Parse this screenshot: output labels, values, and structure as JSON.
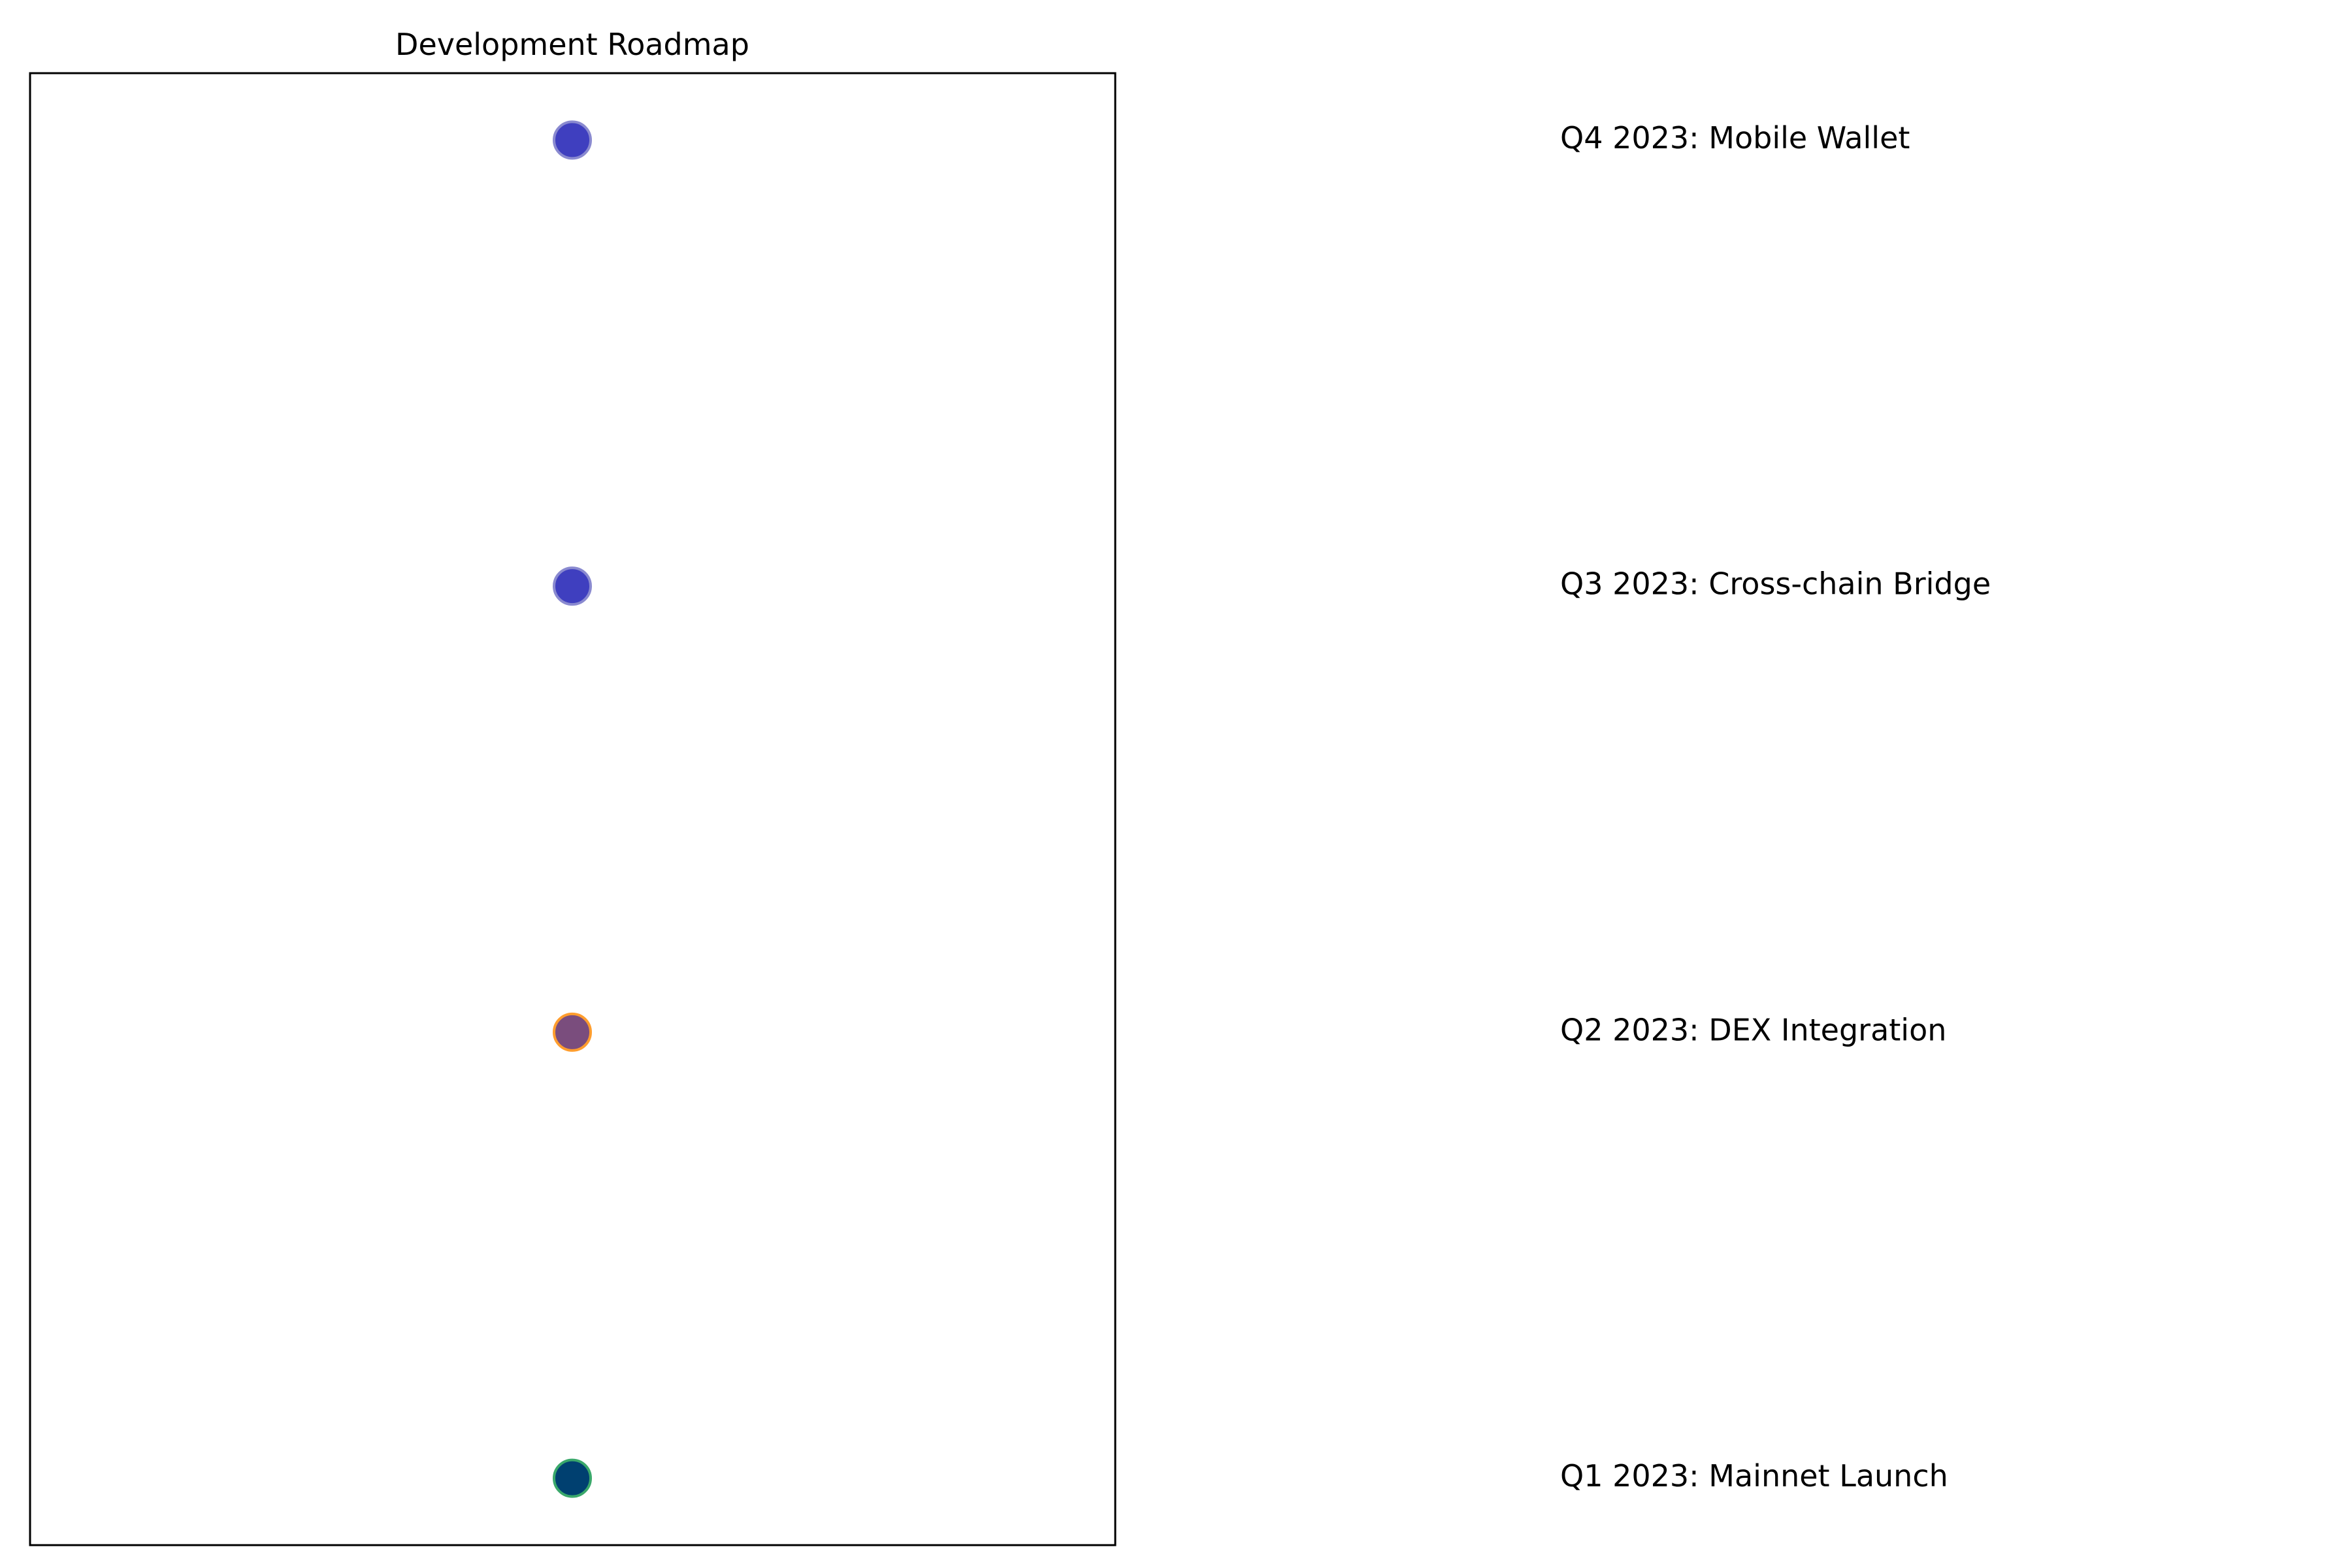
{
  "chart_data": {
    "type": "scatter",
    "title": "Development Roadmap",
    "xlabel": "",
    "ylabel": "",
    "grid": false,
    "legend": "none",
    "axes_visible": false,
    "milestones": [
      {
        "label": "Q1 2023: Mainnet Launch",
        "y": 0,
        "fill": "#004070",
        "edge": "#3aa86b"
      },
      {
        "label": "Q2 2023: DEX Integration",
        "y": 1,
        "fill": "#7a4d7d",
        "edge": "#ff9d2e"
      },
      {
        "label": "Q3 2023: Cross-chain Bridge",
        "y": 2,
        "fill": "#3f3fbf",
        "edge": "#8a8ad0"
      },
      {
        "label": "Q4 2023: Mobile Wallet",
        "y": 3,
        "fill": "#3f3fbf",
        "edge": "#8a8ad0"
      }
    ],
    "ylim": [
      -0.15,
      3.15
    ]
  }
}
